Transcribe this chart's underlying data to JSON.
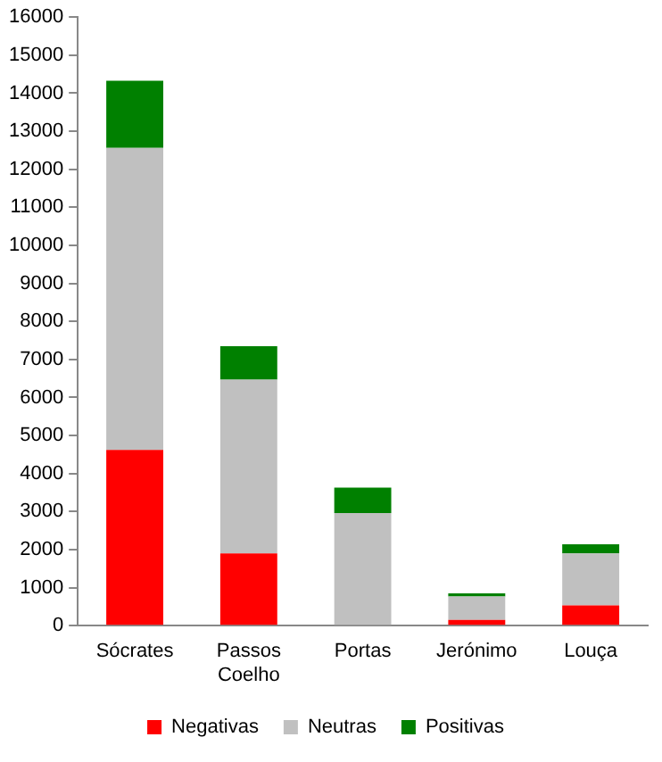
{
  "chart_data": {
    "type": "bar",
    "stacked": true,
    "categories": [
      "Sócrates",
      "Passos Coelho",
      "Portas",
      "Jerónimo",
      "Louça"
    ],
    "series": [
      {
        "name": "Negativas",
        "color": "#ff0000",
        "values": [
          4620,
          1900,
          0,
          150,
          530
        ]
      },
      {
        "name": "Neutras",
        "color": "#c0c0c0",
        "values": [
          7940,
          4570,
          2960,
          620,
          1370
        ]
      },
      {
        "name": "Positivas",
        "color": "#008000",
        "values": [
          1770,
          880,
          670,
          80,
          240
        ]
      }
    ],
    "ylim": [
      0,
      16000
    ],
    "yticks": [
      0,
      1000,
      2000,
      3000,
      4000,
      5000,
      6000,
      7000,
      8000,
      9000,
      10000,
      11000,
      12000,
      13000,
      14000,
      15000,
      16000
    ],
    "grid": false,
    "legend": "bottom"
  }
}
